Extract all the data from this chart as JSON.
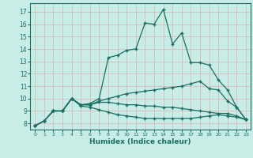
{
  "xlabel": "Humidex (Indice chaleur)",
  "xlim": [
    -0.5,
    23.5
  ],
  "ylim": [
    7.5,
    17.7
  ],
  "xticks": [
    0,
    1,
    2,
    3,
    4,
    5,
    6,
    7,
    8,
    9,
    10,
    11,
    12,
    13,
    14,
    15,
    16,
    17,
    18,
    19,
    20,
    21,
    22,
    23
  ],
  "yticks": [
    8,
    9,
    10,
    11,
    12,
    13,
    14,
    15,
    16,
    17
  ],
  "bg_color": "#c8ece6",
  "line_color": "#1a6e64",
  "grid_color": "#dbbaba",
  "lines": [
    {
      "x": [
        0,
        1,
        2,
        3,
        4,
        5,
        6,
        7,
        8,
        9,
        10,
        11,
        12,
        13,
        14,
        15,
        16,
        17,
        18,
        19,
        20,
        21,
        22,
        23
      ],
      "y": [
        7.8,
        8.2,
        9.0,
        9.0,
        10.0,
        9.5,
        9.6,
        10.0,
        13.3,
        13.5,
        13.9,
        14.0,
        16.1,
        16.0,
        17.2,
        14.4,
        15.3,
        12.9,
        12.9,
        12.7,
        11.5,
        10.7,
        9.3,
        8.3
      ]
    },
    {
      "x": [
        0,
        1,
        2,
        3,
        4,
        5,
        6,
        7,
        8,
        9,
        10,
        11,
        12,
        13,
        14,
        15,
        16,
        17,
        18,
        19,
        20,
        21,
        22,
        23
      ],
      "y": [
        7.8,
        8.2,
        9.0,
        9.0,
        10.0,
        9.5,
        9.5,
        9.8,
        10.0,
        10.2,
        10.4,
        10.5,
        10.6,
        10.7,
        10.8,
        10.9,
        11.0,
        11.2,
        11.4,
        10.8,
        10.7,
        9.8,
        9.3,
        8.3
      ]
    },
    {
      "x": [
        0,
        1,
        2,
        3,
        4,
        5,
        6,
        7,
        8,
        9,
        10,
        11,
        12,
        13,
        14,
        15,
        16,
        17,
        18,
        19,
        20,
        21,
        22,
        23
      ],
      "y": [
        7.8,
        8.2,
        9.0,
        9.0,
        10.0,
        9.5,
        9.5,
        9.7,
        9.7,
        9.6,
        9.5,
        9.5,
        9.4,
        9.4,
        9.3,
        9.3,
        9.2,
        9.1,
        9.0,
        8.9,
        8.8,
        8.8,
        8.6,
        8.3
      ]
    },
    {
      "x": [
        0,
        1,
        2,
        3,
        4,
        5,
        6,
        7,
        8,
        9,
        10,
        11,
        12,
        13,
        14,
        15,
        16,
        17,
        18,
        19,
        20,
        21,
        22,
        23
      ],
      "y": [
        7.8,
        8.2,
        9.0,
        9.0,
        10.0,
        9.4,
        9.3,
        9.1,
        8.9,
        8.7,
        8.6,
        8.5,
        8.4,
        8.4,
        8.4,
        8.4,
        8.4,
        8.4,
        8.5,
        8.6,
        8.7,
        8.6,
        8.5,
        8.3
      ]
    }
  ]
}
